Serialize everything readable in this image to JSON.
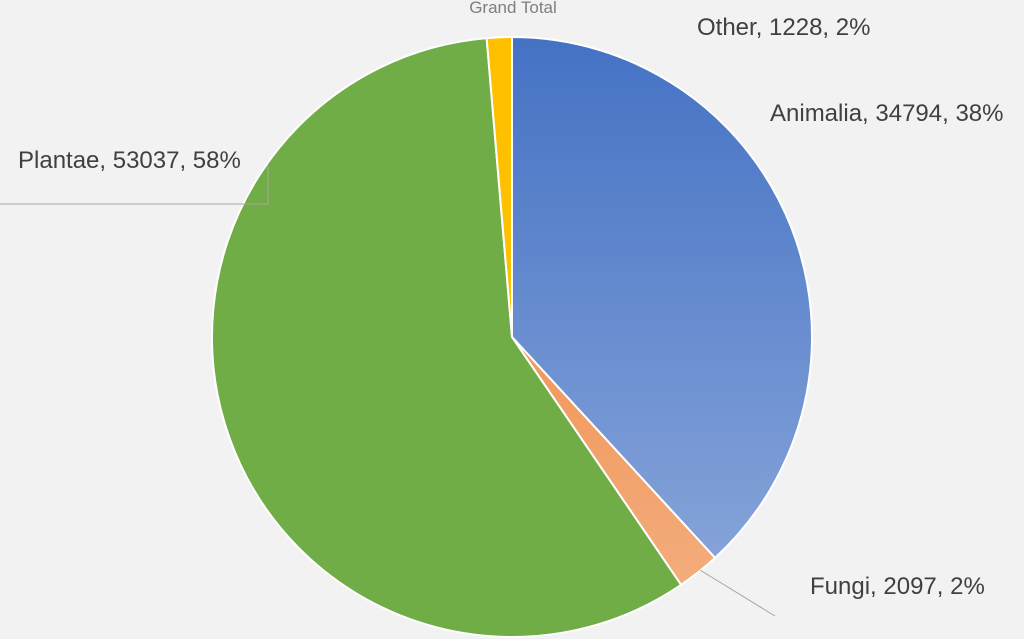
{
  "chart_data": {
    "type": "pie",
    "title": "Grand Total",
    "slices": [
      {
        "name": "Animalia",
        "value": 34794,
        "percent": "38%",
        "label": "Animalia, 34794, 38%",
        "color": "#4472c4",
        "color_light": "#8faadc"
      },
      {
        "name": "Fungi",
        "value": 2097,
        "percent": "2%",
        "label": "Fungi, 2097, 2%",
        "color": "#ed7d31",
        "color_light": "#f4b183"
      },
      {
        "name": "Plantae",
        "value": 53037,
        "percent": "58%",
        "label": "Plantae, 53037, 58%",
        "color": "#70ad47",
        "color_light": "#70ad47"
      },
      {
        "name": "Other",
        "value": 1228,
        "percent": "2%",
        "label": "Other, 1228, 2%",
        "color": "#ffc000",
        "color_light": "#ffc000"
      }
    ],
    "start_angle": "12 o'clock",
    "direction": "clockwise",
    "legend": "none"
  }
}
